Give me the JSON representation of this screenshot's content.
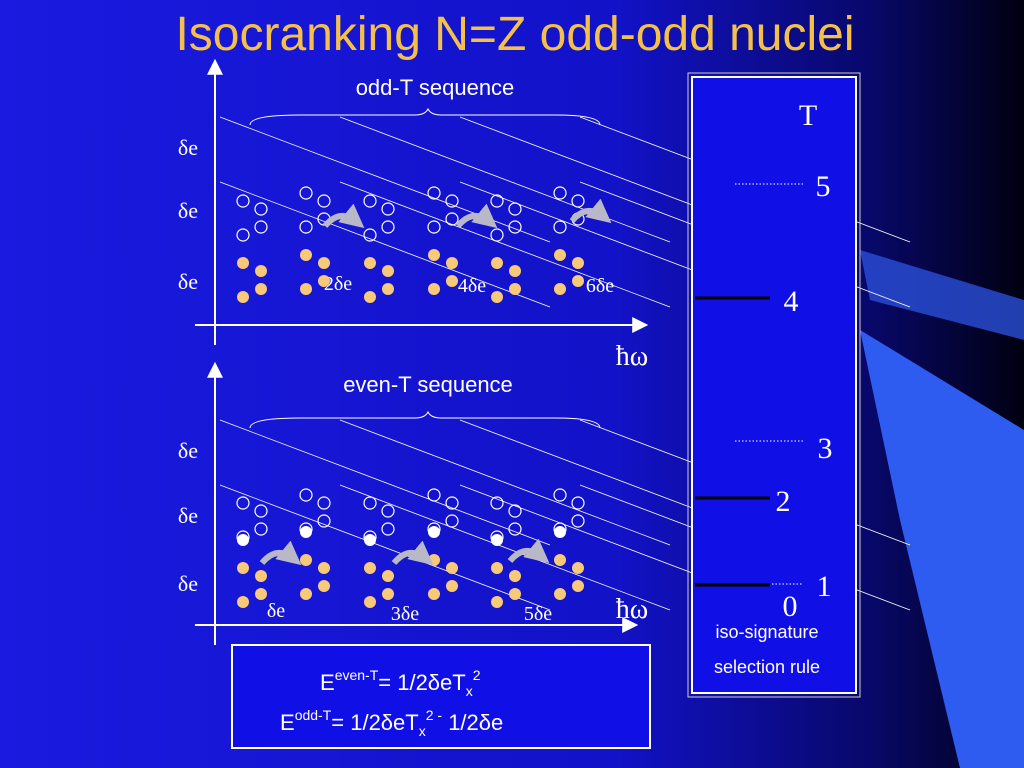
{
  "title": "Isocranking N=Z odd-odd nuclei",
  "panels": [
    {
      "sequence_label": "odd-T sequence",
      "y_labels": [
        "δe",
        "δe",
        "δe"
      ],
      "shift_labels": [
        "2δe",
        "4δe",
        "6δe"
      ],
      "axis_label": "ħω"
    },
    {
      "sequence_label": "even-T sequence",
      "y_labels": [
        "δe",
        "δe",
        "δe"
      ],
      "shift_labels": [
        "δe",
        "3δe",
        "5δe"
      ],
      "axis_label": "ħω"
    }
  ],
  "iso_box": {
    "header": "T",
    "levels": [
      "5",
      "4",
      "3",
      "2",
      "1",
      "0"
    ],
    "caption": [
      "iso-signature",
      "selection rule"
    ]
  },
  "formulas": [
    {
      "lhs": "E",
      "superscript": "even-T",
      "rhs": "=  1/2δeT",
      "subscript": "x",
      "power": "2"
    },
    {
      "lhs": "E",
      "superscript": "odd-T",
      "rhs": "=  1/2δeT",
      "subscript": "x",
      "power": "2 -",
      "tail": " 1/2δe"
    }
  ]
}
